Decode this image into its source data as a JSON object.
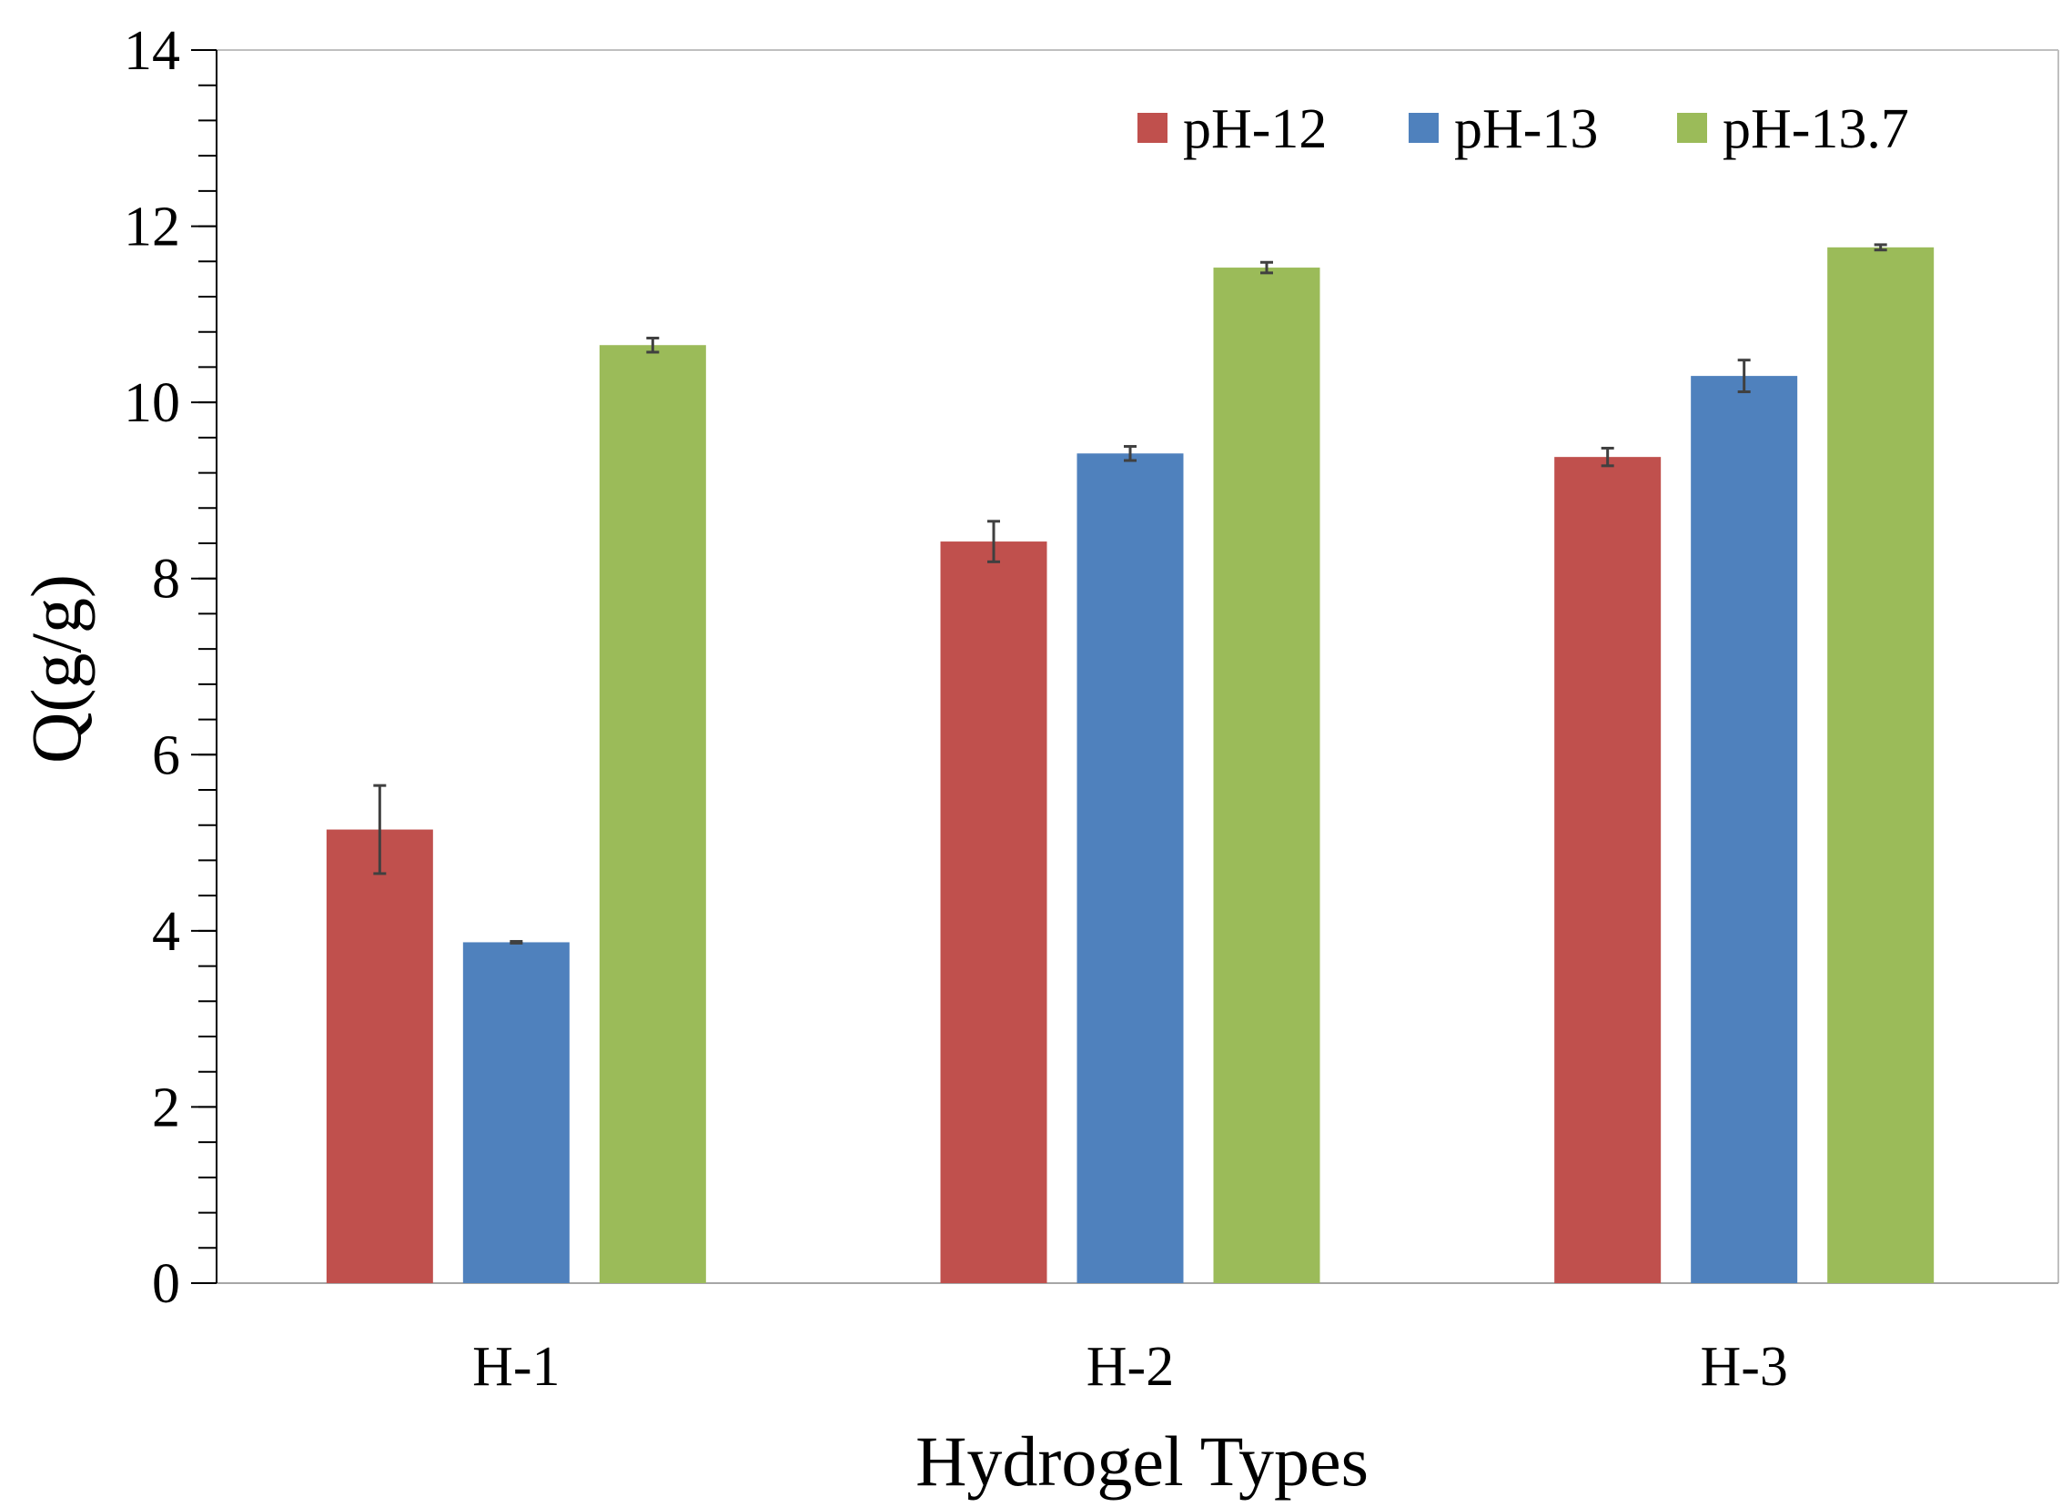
{
  "chart_data": {
    "type": "bar",
    "title": "",
    "xlabel": "Hydrogel Types",
    "ylabel": "Q(g/g)",
    "ylim": [
      0,
      14
    ],
    "yticks": [
      0,
      2,
      4,
      6,
      8,
      10,
      12,
      14
    ],
    "minor_tick_step": 0.4,
    "grid": false,
    "legend_position": "top-right",
    "categories": [
      "H-1",
      "H-2",
      "H-3"
    ],
    "series": [
      {
        "name": "pH-12",
        "color": "#c0504d",
        "values": [
          5.15,
          8.42,
          9.38
        ],
        "errors": [
          0.5,
          0.23,
          0.1
        ]
      },
      {
        "name": "pH-13",
        "color": "#4f81bd",
        "values": [
          3.87,
          9.42,
          10.3
        ],
        "errors": [
          0.01,
          0.08,
          0.18
        ]
      },
      {
        "name": "pH-13.7",
        "color": "#9bbb59",
        "values": [
          10.65,
          11.53,
          11.76
        ],
        "errors": [
          0.08,
          0.06,
          0.03
        ]
      }
    ],
    "error_bar_color": "#404040"
  }
}
